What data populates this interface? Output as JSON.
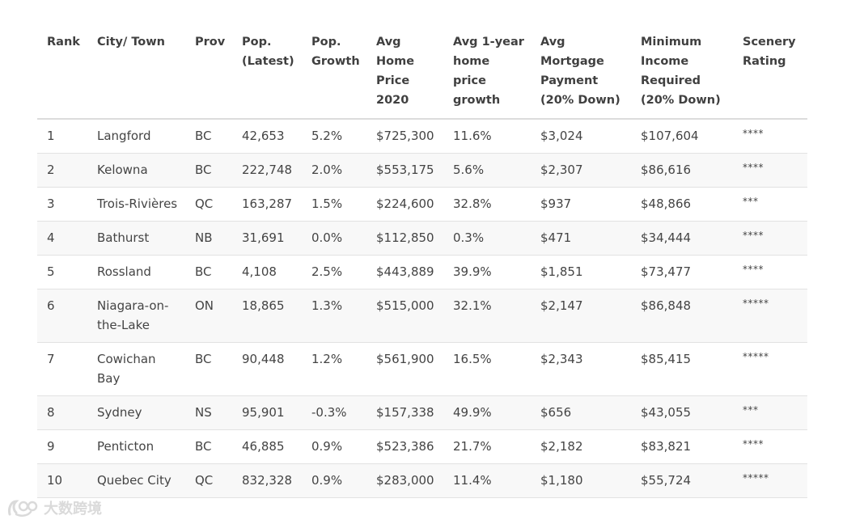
{
  "table": {
    "headers": [
      "Rank",
      "City/ Town",
      "Prov",
      "Pop. (Latest)",
      "Pop. Growth",
      "Avg Home Price 2020",
      "Avg 1-year home price growth",
      "Avg Mortgage Payment (20% Down)",
      "Minimum Income Required (20% Down)",
      "Scenery Rating"
    ],
    "rows": [
      [
        "1",
        "Langford",
        "BC",
        "42,653",
        "5.2%",
        "$725,300",
        "11.6%",
        "$3,024",
        "$107,604",
        "****"
      ],
      [
        "2",
        "Kelowna",
        "BC",
        "222,748",
        "2.0%",
        "$553,175",
        "5.6%",
        "$2,307",
        "$86,616",
        "****"
      ],
      [
        "3",
        "Trois-Rivières",
        "QC",
        "163,287",
        "1.5%",
        "$224,600",
        "32.8%",
        "$937",
        "$48,866",
        "***"
      ],
      [
        "4",
        "Bathurst",
        "NB",
        "31,691",
        "0.0%",
        "$112,850",
        "0.3%",
        "$471",
        "$34,444",
        "****"
      ],
      [
        "5",
        "Rossland",
        "BC",
        "4,108",
        "2.5%",
        "$443,889",
        "39.9%",
        "$1,851",
        "$73,477",
        "****"
      ],
      [
        "6",
        "Niagara-on-the-Lake",
        "ON",
        "18,865",
        "1.3%",
        "$515,000",
        "32.1%",
        "$2,147",
        "$86,848",
        "*****"
      ],
      [
        "7",
        "Cowichan Bay",
        "BC",
        "90,448",
        "1.2%",
        "$561,900",
        "16.5%",
        "$2,343",
        "$85,415",
        "*****"
      ],
      [
        "8",
        "Sydney",
        "NS",
        "95,901",
        "-0.3%",
        "$157,338",
        "49.9%",
        "$656",
        "$43,055",
        "***"
      ],
      [
        "9",
        "Penticton",
        "BC",
        "46,885",
        "0.9%",
        "$523,386",
        "21.7%",
        "$2,182",
        "$83,821",
        "****"
      ],
      [
        "10",
        "Quebec City",
        "QC",
        "832,328",
        "0.9%",
        "$283,000",
        "11.4%",
        "$1,180",
        "$55,724",
        "*****"
      ]
    ]
  },
  "watermark": {
    "text": "大数跨境",
    "icon": "brand-logo-icon"
  }
}
